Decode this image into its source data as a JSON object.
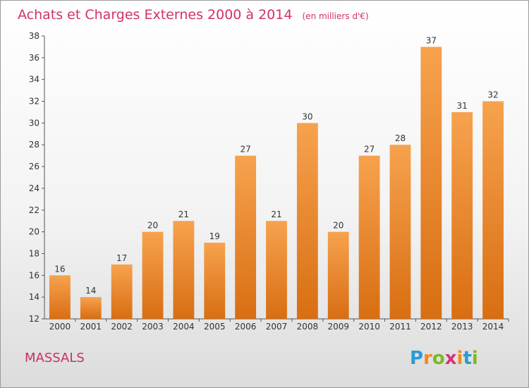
{
  "chart_data": {
    "type": "bar",
    "title": "Achats et Charges Externes 2000 à 2014",
    "subtitle": "(en milliers d'€)",
    "categories": [
      "2000",
      "2001",
      "2002",
      "2003",
      "2004",
      "2005",
      "2006",
      "2007",
      "2008",
      "2009",
      "2010",
      "2011",
      "2012",
      "2013",
      "2014"
    ],
    "values": [
      16,
      14,
      17,
      20,
      21,
      19,
      27,
      21,
      30,
      20,
      27,
      28,
      37,
      31,
      32
    ],
    "ylim": [
      12,
      38
    ],
    "yticks": [
      12,
      14,
      16,
      18,
      20,
      22,
      24,
      26,
      28,
      30,
      32,
      34,
      36,
      38
    ],
    "grid": false,
    "bar_color_top": "#f7a24e",
    "bar_color_bottom": "#d86e12"
  },
  "place_name": "MASSALS",
  "logo": {
    "letters": [
      "P",
      "r",
      "o",
      "x",
      "i",
      "t",
      "i"
    ],
    "colors": [
      "#2a9ad6",
      "#f08a1c",
      "#7ab929",
      "#d8307a",
      "#f08a1c",
      "#2a9ad6",
      "#7ab929"
    ]
  }
}
